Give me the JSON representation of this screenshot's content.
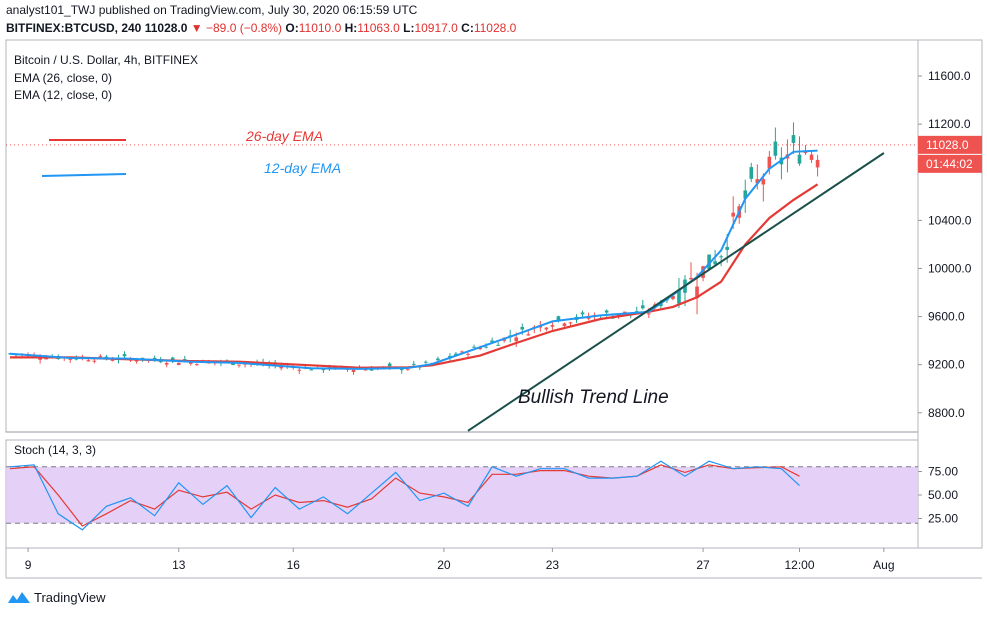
{
  "header": {
    "publisher_line": "analyst101_TWJ published on TradingView.com, July 30, 2020 06:15:59 UTC",
    "symbol": "BITFINEX:BTCUSD, 240",
    "last": "11028.0",
    "change": "−89.0 (−0.8%)",
    "o_label": "O:",
    "o_val": "11010.0",
    "h_label": "H:",
    "h_val": "11063.0",
    "l_label": "L:",
    "l_val": "10917.0",
    "c_label": "C:",
    "c_val": "11028.0"
  },
  "legend": {
    "title": "Bitcoin / U.S. Dollar, 4h, BITFINEX",
    "ema26": "EMA (26, close, 0)",
    "ema12": "EMA (12, close, 0)"
  },
  "annotations": {
    "ema26_label": "26-day EMA",
    "ema12_label": "12-day EMA",
    "trend_label": "Bullish Trend Line"
  },
  "price_axis": {
    "ticks": [
      "11600.0",
      "11200.0",
      "10400.0",
      "10000.0",
      "9600.0",
      "9200.0",
      "8800.0"
    ],
    "current_price": "11028.0",
    "countdown": "01:44:02"
  },
  "stoch": {
    "label": "Stoch (14, 3, 3)",
    "ticks": [
      "75.00",
      "50.00",
      "25.00"
    ]
  },
  "time_axis": [
    "9",
    "13",
    "16",
    "20",
    "23",
    "27",
    "12:00",
    "Aug"
  ],
  "footer": {
    "brand": "TradingView"
  },
  "colors": {
    "ema26": "#e53935",
    "ema12": "#2196f3",
    "up": "#26a69a",
    "down": "#ef5350",
    "trend": "#1b4f4a",
    "stoch_fill": "#e1c9f7"
  },
  "chart_data": {
    "type": "candlestick",
    "title": "Bitcoin / U.S. Dollar, 4h, BITFINEX",
    "ylim": [
      8640,
      11900
    ],
    "price_ticks": [
      11600,
      11200,
      10400,
      10000,
      9600,
      9200,
      8800
    ],
    "current_price": 11028,
    "ema26": [
      [
        0,
        9260
      ],
      [
        10,
        9260
      ],
      [
        20,
        9245
      ],
      [
        30,
        9230
      ],
      [
        38,
        9225
      ],
      [
        50,
        9195
      ],
      [
        58,
        9175
      ],
      [
        66,
        9178
      ],
      [
        70,
        9195
      ],
      [
        78,
        9275
      ],
      [
        84,
        9380
      ],
      [
        90,
        9480
      ],
      [
        98,
        9580
      ],
      [
        106,
        9640
      ],
      [
        110,
        9680
      ],
      [
        114,
        9760
      ],
      [
        118,
        9890
      ],
      [
        122,
        10200
      ],
      [
        126,
        10420
      ],
      [
        130,
        10570
      ],
      [
        134,
        10700
      ]
    ],
    "ema12": [
      [
        0,
        9290
      ],
      [
        10,
        9255
      ],
      [
        20,
        9250
      ],
      [
        30,
        9225
      ],
      [
        38,
        9215
      ],
      [
        50,
        9170
      ],
      [
        58,
        9165
      ],
      [
        66,
        9172
      ],
      [
        70,
        9205
      ],
      [
        78,
        9345
      ],
      [
        84,
        9450
      ],
      [
        90,
        9560
      ],
      [
        98,
        9610
      ],
      [
        106,
        9640
      ],
      [
        110,
        9780
      ],
      [
        114,
        9930
      ],
      [
        118,
        10150
      ],
      [
        122,
        10580
      ],
      [
        126,
        10830
      ],
      [
        130,
        10970
      ],
      [
        134,
        10980
      ]
    ],
    "trend_line": [
      [
        76,
        8650
      ],
      [
        145,
        10960
      ]
    ],
    "stoch_k": [
      [
        0,
        80
      ],
      [
        4,
        82
      ],
      [
        8,
        30
      ],
      [
        12,
        13
      ],
      [
        16,
        38
      ],
      [
        20,
        47
      ],
      [
        24,
        28
      ],
      [
        28,
        63
      ],
      [
        32,
        40
      ],
      [
        36,
        60
      ],
      [
        40,
        26
      ],
      [
        44,
        58
      ],
      [
        48,
        35
      ],
      [
        52,
        48
      ],
      [
        56,
        30
      ],
      [
        60,
        52
      ],
      [
        64,
        74
      ],
      [
        68,
        44
      ],
      [
        72,
        52
      ],
      [
        76,
        38
      ],
      [
        80,
        80
      ],
      [
        84,
        70
      ],
      [
        88,
        78
      ],
      [
        92,
        78
      ],
      [
        96,
        68
      ],
      [
        100,
        68
      ],
      [
        104,
        70
      ],
      [
        108,
        86
      ],
      [
        112,
        70
      ],
      [
        116,
        86
      ],
      [
        120,
        78
      ],
      [
        124,
        80
      ],
      [
        128,
        78
      ],
      [
        131,
        60
      ]
    ],
    "stoch_d": [
      [
        0,
        78
      ],
      [
        4,
        80
      ],
      [
        8,
        50
      ],
      [
        12,
        17
      ],
      [
        16,
        30
      ],
      [
        20,
        44
      ],
      [
        24,
        35
      ],
      [
        28,
        55
      ],
      [
        32,
        48
      ],
      [
        36,
        53
      ],
      [
        40,
        35
      ],
      [
        44,
        50
      ],
      [
        48,
        42
      ],
      [
        52,
        44
      ],
      [
        56,
        37
      ],
      [
        60,
        46
      ],
      [
        64,
        68
      ],
      [
        68,
        52
      ],
      [
        72,
        48
      ],
      [
        76,
        42
      ],
      [
        80,
        72
      ],
      [
        84,
        72
      ],
      [
        88,
        76
      ],
      [
        92,
        76
      ],
      [
        96,
        70
      ],
      [
        100,
        68
      ],
      [
        104,
        70
      ],
      [
        108,
        82
      ],
      [
        112,
        74
      ],
      [
        116,
        82
      ],
      [
        120,
        78
      ],
      [
        124,
        79
      ],
      [
        128,
        80
      ],
      [
        131,
        70
      ]
    ],
    "stoch_ticks": [
      75,
      50,
      25
    ],
    "time_labels": [
      [
        3,
        "9"
      ],
      [
        28,
        "13"
      ],
      [
        47,
        "16"
      ],
      [
        72,
        "20"
      ],
      [
        90,
        "23"
      ],
      [
        115,
        "27"
      ],
      [
        131,
        "12:00"
      ],
      [
        145,
        "Aug"
      ]
    ]
  }
}
